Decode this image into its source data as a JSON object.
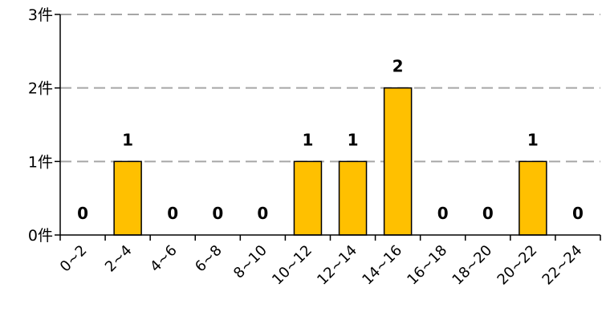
{
  "chart_data": {
    "type": "bar",
    "categories": [
      "0~2",
      "2~4",
      "4~6",
      "6~8",
      "8~10",
      "10~12",
      "12~14",
      "14~16",
      "16~18",
      "18~20",
      "20~22",
      "22~24"
    ],
    "values": [
      0,
      1,
      0,
      0,
      0,
      1,
      1,
      2,
      0,
      0,
      1,
      0
    ],
    "data_labels": [
      "0",
      "1",
      "0",
      "0",
      "0",
      "1",
      "1",
      "2",
      "0",
      "0",
      "1",
      "0"
    ],
    "y_ticks": [
      {
        "value": 0,
        "label": "0件"
      },
      {
        "value": 1,
        "label": "1件"
      },
      {
        "value": 2,
        "label": "2件"
      },
      {
        "value": 3,
        "label": "3件"
      }
    ],
    "ylim": [
      0,
      3
    ],
    "grid": "horizontal-dashed",
    "legend": "none",
    "colors": {
      "bar_fill": "#FFC000",
      "bar_stroke": "#000000",
      "grid": "#A6A6A6",
      "axis": "#000000"
    }
  }
}
